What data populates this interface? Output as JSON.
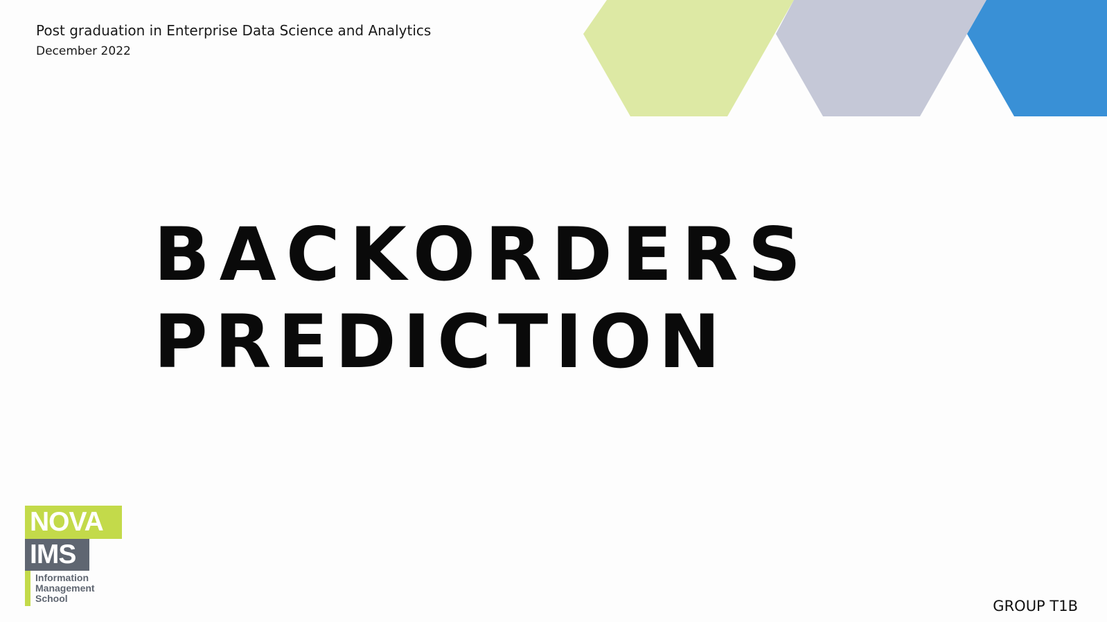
{
  "header": {
    "program": "Post graduation in Enterprise Data Science and Analytics",
    "date": "December 2022"
  },
  "title": {
    "line1": "BACKORDERS",
    "line2": "PREDICTION"
  },
  "logo": {
    "nova": "NOVA",
    "ims": "IMS",
    "line1": "Information",
    "line2": "Management",
    "line3": "School"
  },
  "footer": {
    "group": "GROUP T1B"
  },
  "colors": {
    "hex_green": "#dde9a4",
    "hex_gray": "#c5c8d7",
    "hex_blue": "#3990d6",
    "logo_green": "#c3da4a",
    "logo_gray": "#5f6671"
  }
}
